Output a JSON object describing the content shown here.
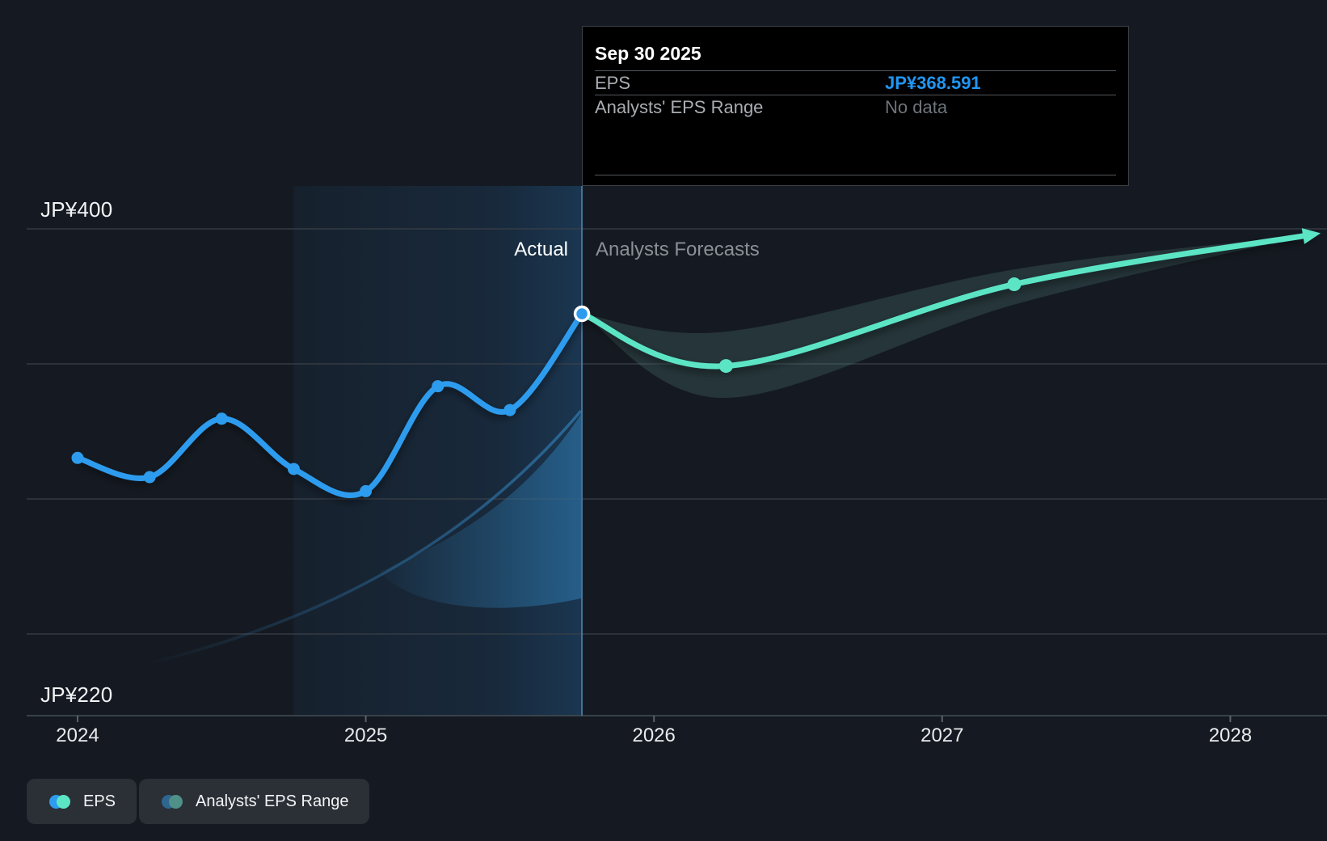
{
  "colors": {
    "background": "#151A22",
    "eps_line": "#2D9CEE",
    "forecast_line": "#5CE5C5",
    "range_fill": "#5F968C",
    "highlight_band": "#2878BE",
    "divider": "#4E81A8",
    "gridline": "#3A4048",
    "tooltip_value_blue": "#2196F3",
    "muted_text": "#8A9096"
  },
  "tooltip": {
    "title": "Sep 30 2025",
    "rows": [
      {
        "label": "EPS",
        "value": "JP¥368.591"
      },
      {
        "label": "Analysts' EPS Range",
        "value": "No data"
      }
    ]
  },
  "annotations": {
    "actual": "Actual",
    "forecast": "Analysts Forecasts"
  },
  "legend": {
    "items": [
      {
        "label": "EPS",
        "dots": [
          "#2D9CEE",
          "#5CE5C5"
        ]
      },
      {
        "label": "Analysts' EPS Range",
        "dots": [
          "#2E6690",
          "#4F9188"
        ]
      }
    ]
  },
  "chart_data": {
    "type": "line",
    "title": "EPS actual and analysts forecast over time",
    "x_axis": {
      "ticks": [
        2024,
        2025,
        2026,
        2027,
        2028
      ],
      "tick_labels": [
        "2024",
        "2025",
        "2026",
        "2027",
        "2028"
      ]
    },
    "y_axis": {
      "labels": [
        {
          "text": "JP¥400",
          "value": 400
        },
        {
          "text": "JP¥220",
          "value": 220
        }
      ],
      "min": 220,
      "max": 400,
      "currency": "JP¥",
      "gridlines_shown": 4
    },
    "divider": {
      "x": 2025.75,
      "date_label": "Sep 30 2025",
      "highlight_band": [
        2024.75,
        2025.75
      ]
    },
    "series": [
      {
        "name": "EPS",
        "role": "actual",
        "color": "#2D9CEE",
        "x": [
          2024.0,
          2024.25,
          2024.5,
          2024.75,
          2025.0,
          2025.25,
          2025.5,
          2025.75
        ],
        "values": [
          315.3,
          308.2,
          329.8,
          311.2,
          303.0,
          341.8,
          333.0,
          368.591
        ]
      },
      {
        "name": "EPS forecast",
        "role": "forecast",
        "color": "#5CE5C5",
        "x": [
          2025.75,
          2026.25,
          2027.25,
          2028.28
        ],
        "values": [
          368.591,
          349.3,
          379.5,
          397.8
        ],
        "marker_x": [
          2026.25,
          2027.25
        ]
      }
    ],
    "range_series": {
      "name": "Analysts' EPS Range",
      "x": [
        2025.75,
        2026.25,
        2027.25,
        2028.28
      ],
      "upper": [
        368.591,
        362.0,
        385.0,
        397.8
      ],
      "lower": [
        368.591,
        337.5,
        372.0,
        397.8
      ]
    },
    "legend_position": "bottom-left",
    "grid": "horizontal"
  }
}
